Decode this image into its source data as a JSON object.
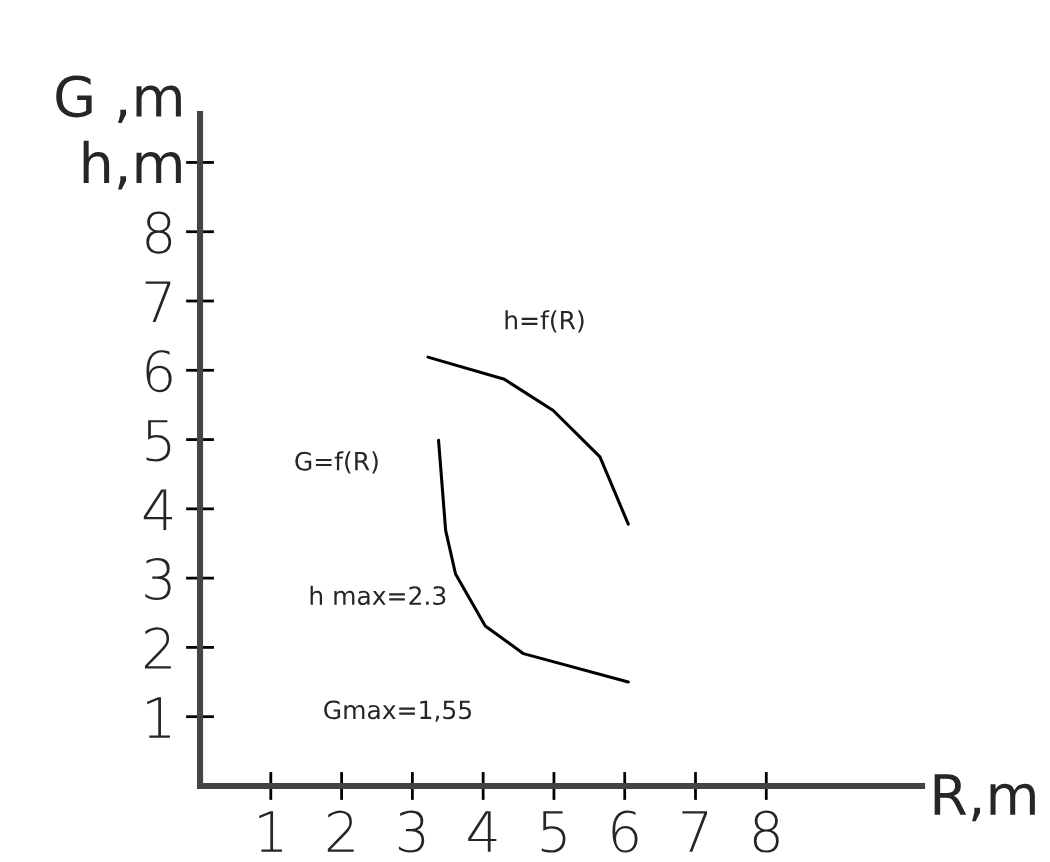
{
  "chart_data": {
    "type": "line",
    "xlabel": "R,m",
    "ylabel": "G ,m\nh,m",
    "series": [
      {
        "color": "#000000",
        "x": [
          3.22,
          4.3,
          4.99,
          5.65,
          6.05
        ],
        "values": [
          6.19,
          5.87,
          5.42,
          4.75,
          3.78
        ]
      },
      {
        "color": "#000000",
        "x": [
          3.37,
          3.47,
          3.61,
          4.03,
          4.57,
          6.05
        ],
        "values": [
          4.99,
          3.69,
          3.06,
          2.31,
          1.91,
          1.5
        ]
      }
    ],
    "xlim": [
      0,
      10.2
    ],
    "ylim": [
      0,
      9.7
    ],
    "xticks": [
      1,
      2,
      3,
      4,
      5,
      6,
      7,
      8
    ],
    "yticks": [
      1,
      2,
      3,
      4,
      5,
      6,
      7,
      8,
      {
        "value": 9,
        "label": null
      }
    ],
    "annotations": [
      "h=f(R)",
      "G=f(R)",
      "h max=2.3",
      "Gmax=1,55"
    ],
    "grid": false,
    "legend": false,
    "marker": "none",
    "line_style": "solid"
  }
}
